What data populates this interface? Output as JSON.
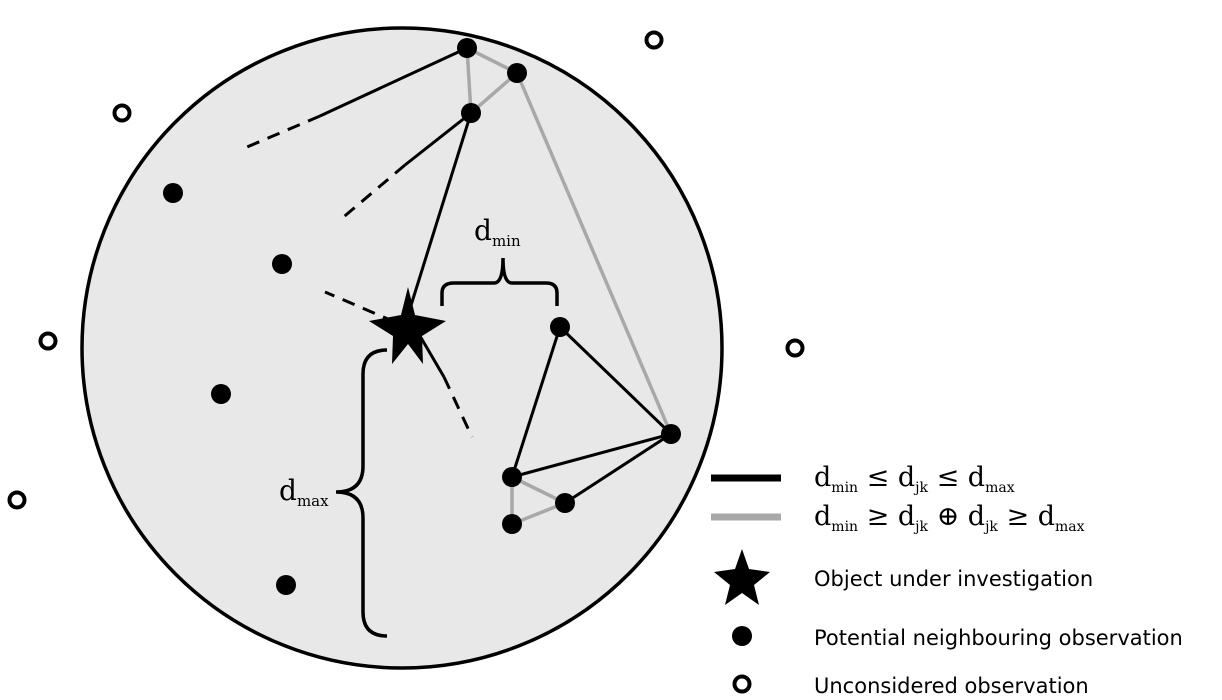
{
  "colors": {
    "background": "#ffffff",
    "circle_fill": "#e8e8e8",
    "circle_stroke": "#000000",
    "strong_edge": "#000000",
    "weak_edge": "#a8a8a8",
    "point": "#000000"
  },
  "labels": {
    "dmin": {
      "base": "d",
      "sub": "min"
    },
    "dmax": {
      "base": "d",
      "sub": "max"
    }
  },
  "legend": {
    "black_line": {
      "expr": [
        "d",
        "min",
        " ≤ ",
        "d",
        "jk",
        " ≤ ",
        "d",
        "max"
      ]
    },
    "gray_line": {
      "expr": [
        "d",
        "min",
        " ≥ ",
        "d",
        "jk",
        " ⊕ ",
        "d",
        "jk",
        " ≥ ",
        "d",
        "max"
      ]
    },
    "star": {
      "icon": "star-icon",
      "text": "Object under investigation"
    },
    "filled_dot": {
      "icon": "filled-dot-icon",
      "text": "Potential neighbouring observation"
    },
    "hollow_dot": {
      "icon": "hollow-dot-icon",
      "text": "Unconsidered observation"
    }
  }
}
